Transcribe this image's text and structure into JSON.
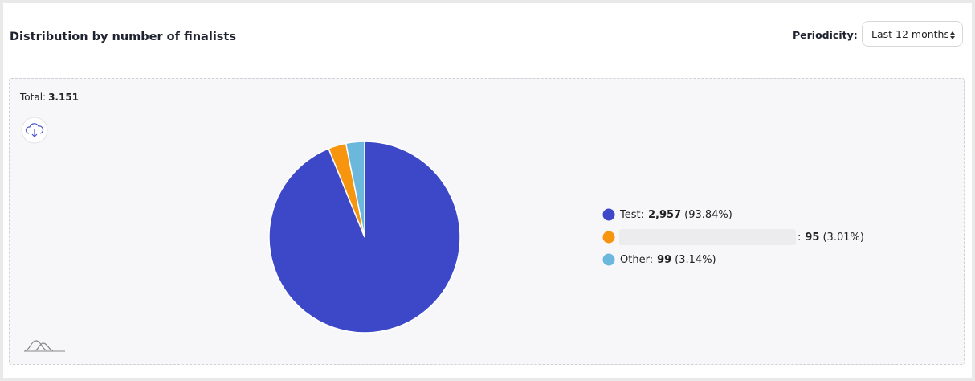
{
  "header": {
    "title": "Distribution by number of finalists"
  },
  "periodicity": {
    "label": "Periodicity:",
    "value": "Last 12 months"
  },
  "total": {
    "label": "Total:",
    "value": "3.151"
  },
  "chart_data": {
    "type": "pie",
    "categories": [
      "Test",
      null,
      "Other"
    ],
    "values": [
      2957,
      95,
      99
    ],
    "value_labels": [
      "2,957",
      "95",
      "99"
    ],
    "percent_labels": [
      "(93.84%)",
      "(3.01%)",
      "(3.14%)"
    ],
    "label_separator": ":",
    "colors": [
      "#3c48c8",
      "#f7950f",
      "#6bb8dc"
    ]
  }
}
